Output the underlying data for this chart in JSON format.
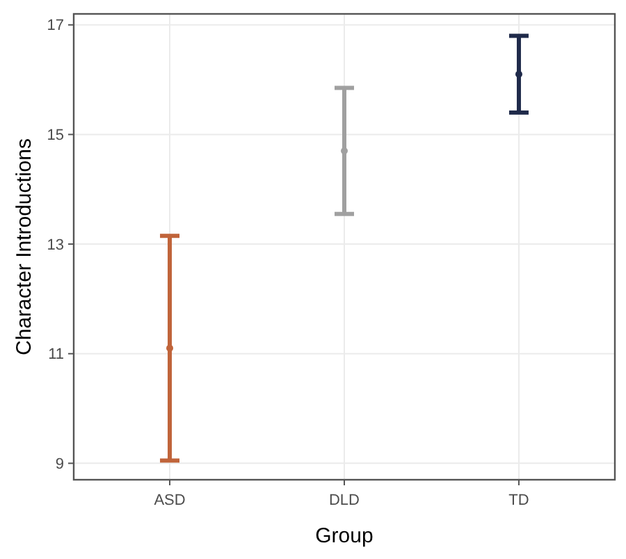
{
  "chart_data": {
    "type": "scatter",
    "xlabel": "Group",
    "ylabel": "Character Introductions",
    "categories": [
      "ASD",
      "DLD",
      "TD"
    ],
    "values": [
      11.1,
      14.7,
      16.1
    ],
    "colors": [
      "#c0643a",
      "#a0a0a0",
      "#1f2a4a"
    ],
    "errors": [
      [
        9.05,
        13.15
      ],
      [
        13.55,
        15.85
      ],
      [
        15.4,
        16.8
      ]
    ],
    "ylim": [
      8.7,
      17.2
    ],
    "yticks": [
      9,
      11,
      13,
      15,
      17
    ],
    "grid": true,
    "marker": "circle"
  }
}
